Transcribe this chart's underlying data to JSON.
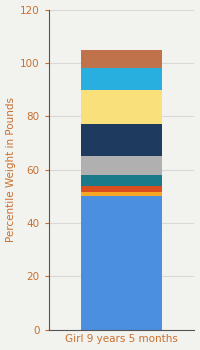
{
  "category": "Girl 9 years 5 months",
  "segments": [
    {
      "value": 50.0,
      "color": "#4a8fe0"
    },
    {
      "value": 1.5,
      "color": "#f5a623"
    },
    {
      "value": 2.5,
      "color": "#d94e1f"
    },
    {
      "value": 4.0,
      "color": "#1a7a8a"
    },
    {
      "value": 7.0,
      "color": "#b0b0b0"
    },
    {
      "value": 12.0,
      "color": "#1e3a5f"
    },
    {
      "value": 13.0,
      "color": "#f9e07a"
    },
    {
      "value": 8.0,
      "color": "#29aee0"
    },
    {
      "value": 7.0,
      "color": "#c0724a"
    }
  ],
  "ylabel": "Percentile Weight in Pounds",
  "ylim": [
    0,
    120
  ],
  "yticks": [
    0,
    20,
    40,
    60,
    80,
    100,
    120
  ],
  "background_color": "#f2f2ee",
  "grid_color": "#d8d8d8",
  "xlabel_color": "#c87030",
  "ylabel_color": "#c87030",
  "tick_color": "#c87030",
  "bar_edge_color": "none",
  "axis_fontsize": 7.5,
  "bar_width": 0.55
}
